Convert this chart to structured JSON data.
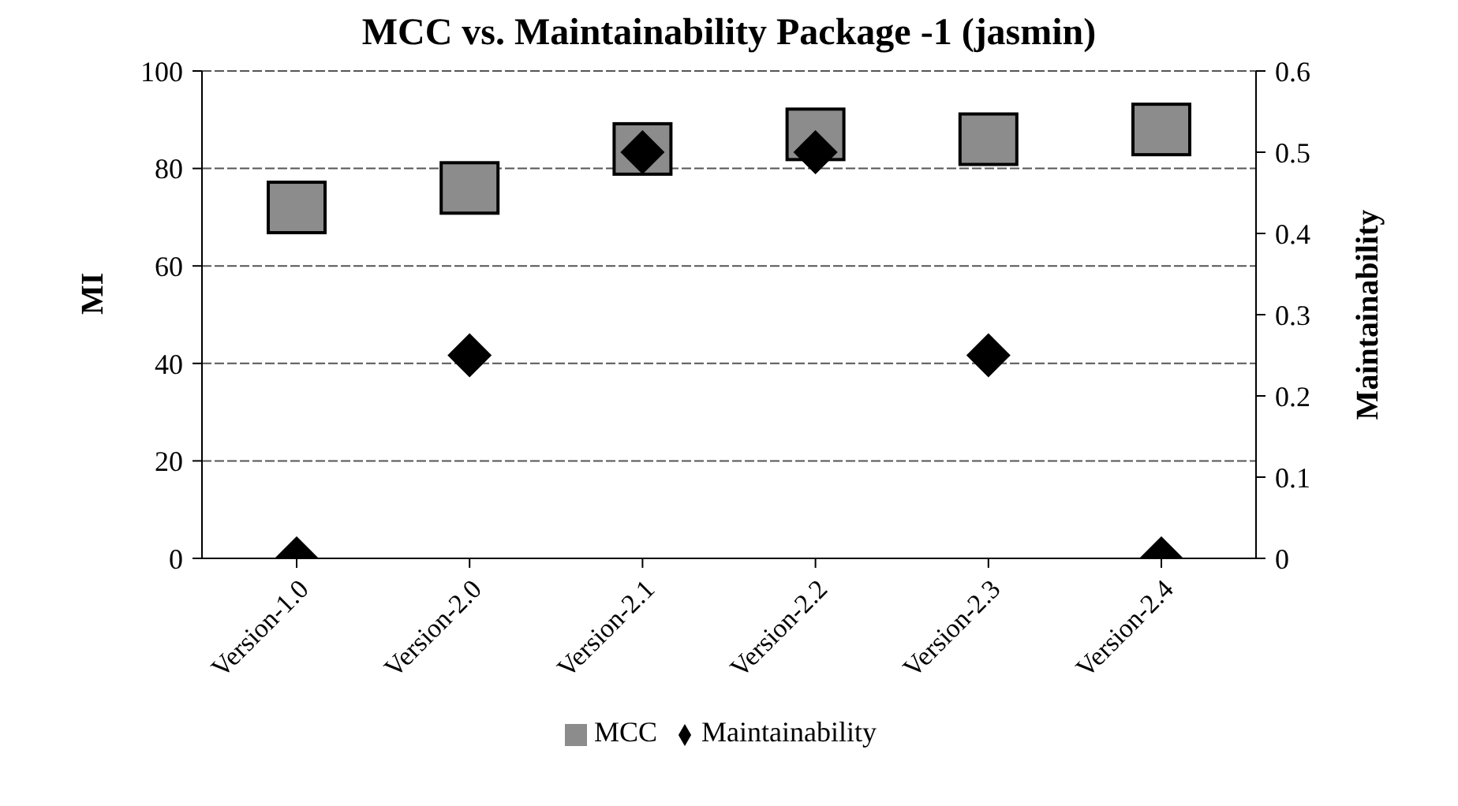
{
  "chart_data": {
    "type": "scatter",
    "title": "MCC vs. Maintainability Package -1 (jasmin)",
    "ylabel": "MI",
    "y2label": "Maintainability",
    "categories": [
      "Version-1.0",
      "Version-2.0",
      "Version-2.1",
      "Version-2.2",
      "Version-2.3",
      "Version-2.4"
    ],
    "series": [
      {
        "name": "MCC",
        "color": "#8c8c8c",
        "marker": "square",
        "values": [
          72,
          76,
          84,
          87,
          86,
          88
        ]
      },
      {
        "name": "Maintainability",
        "color": "#000000",
        "marker": "diamond",
        "axis": "y2",
        "values": [
          0,
          0.25,
          0.5,
          0.5,
          0.25,
          0
        ]
      }
    ],
    "ylim": [
      0,
      100
    ],
    "yticks": [
      0,
      20,
      40,
      60,
      80,
      100
    ],
    "y2lim": [
      0,
      0.6
    ],
    "y2ticks": [
      0,
      0.1,
      0.2,
      0.3,
      0.4,
      0.5,
      0.6
    ],
    "grid": "y",
    "legend": "bottom"
  }
}
